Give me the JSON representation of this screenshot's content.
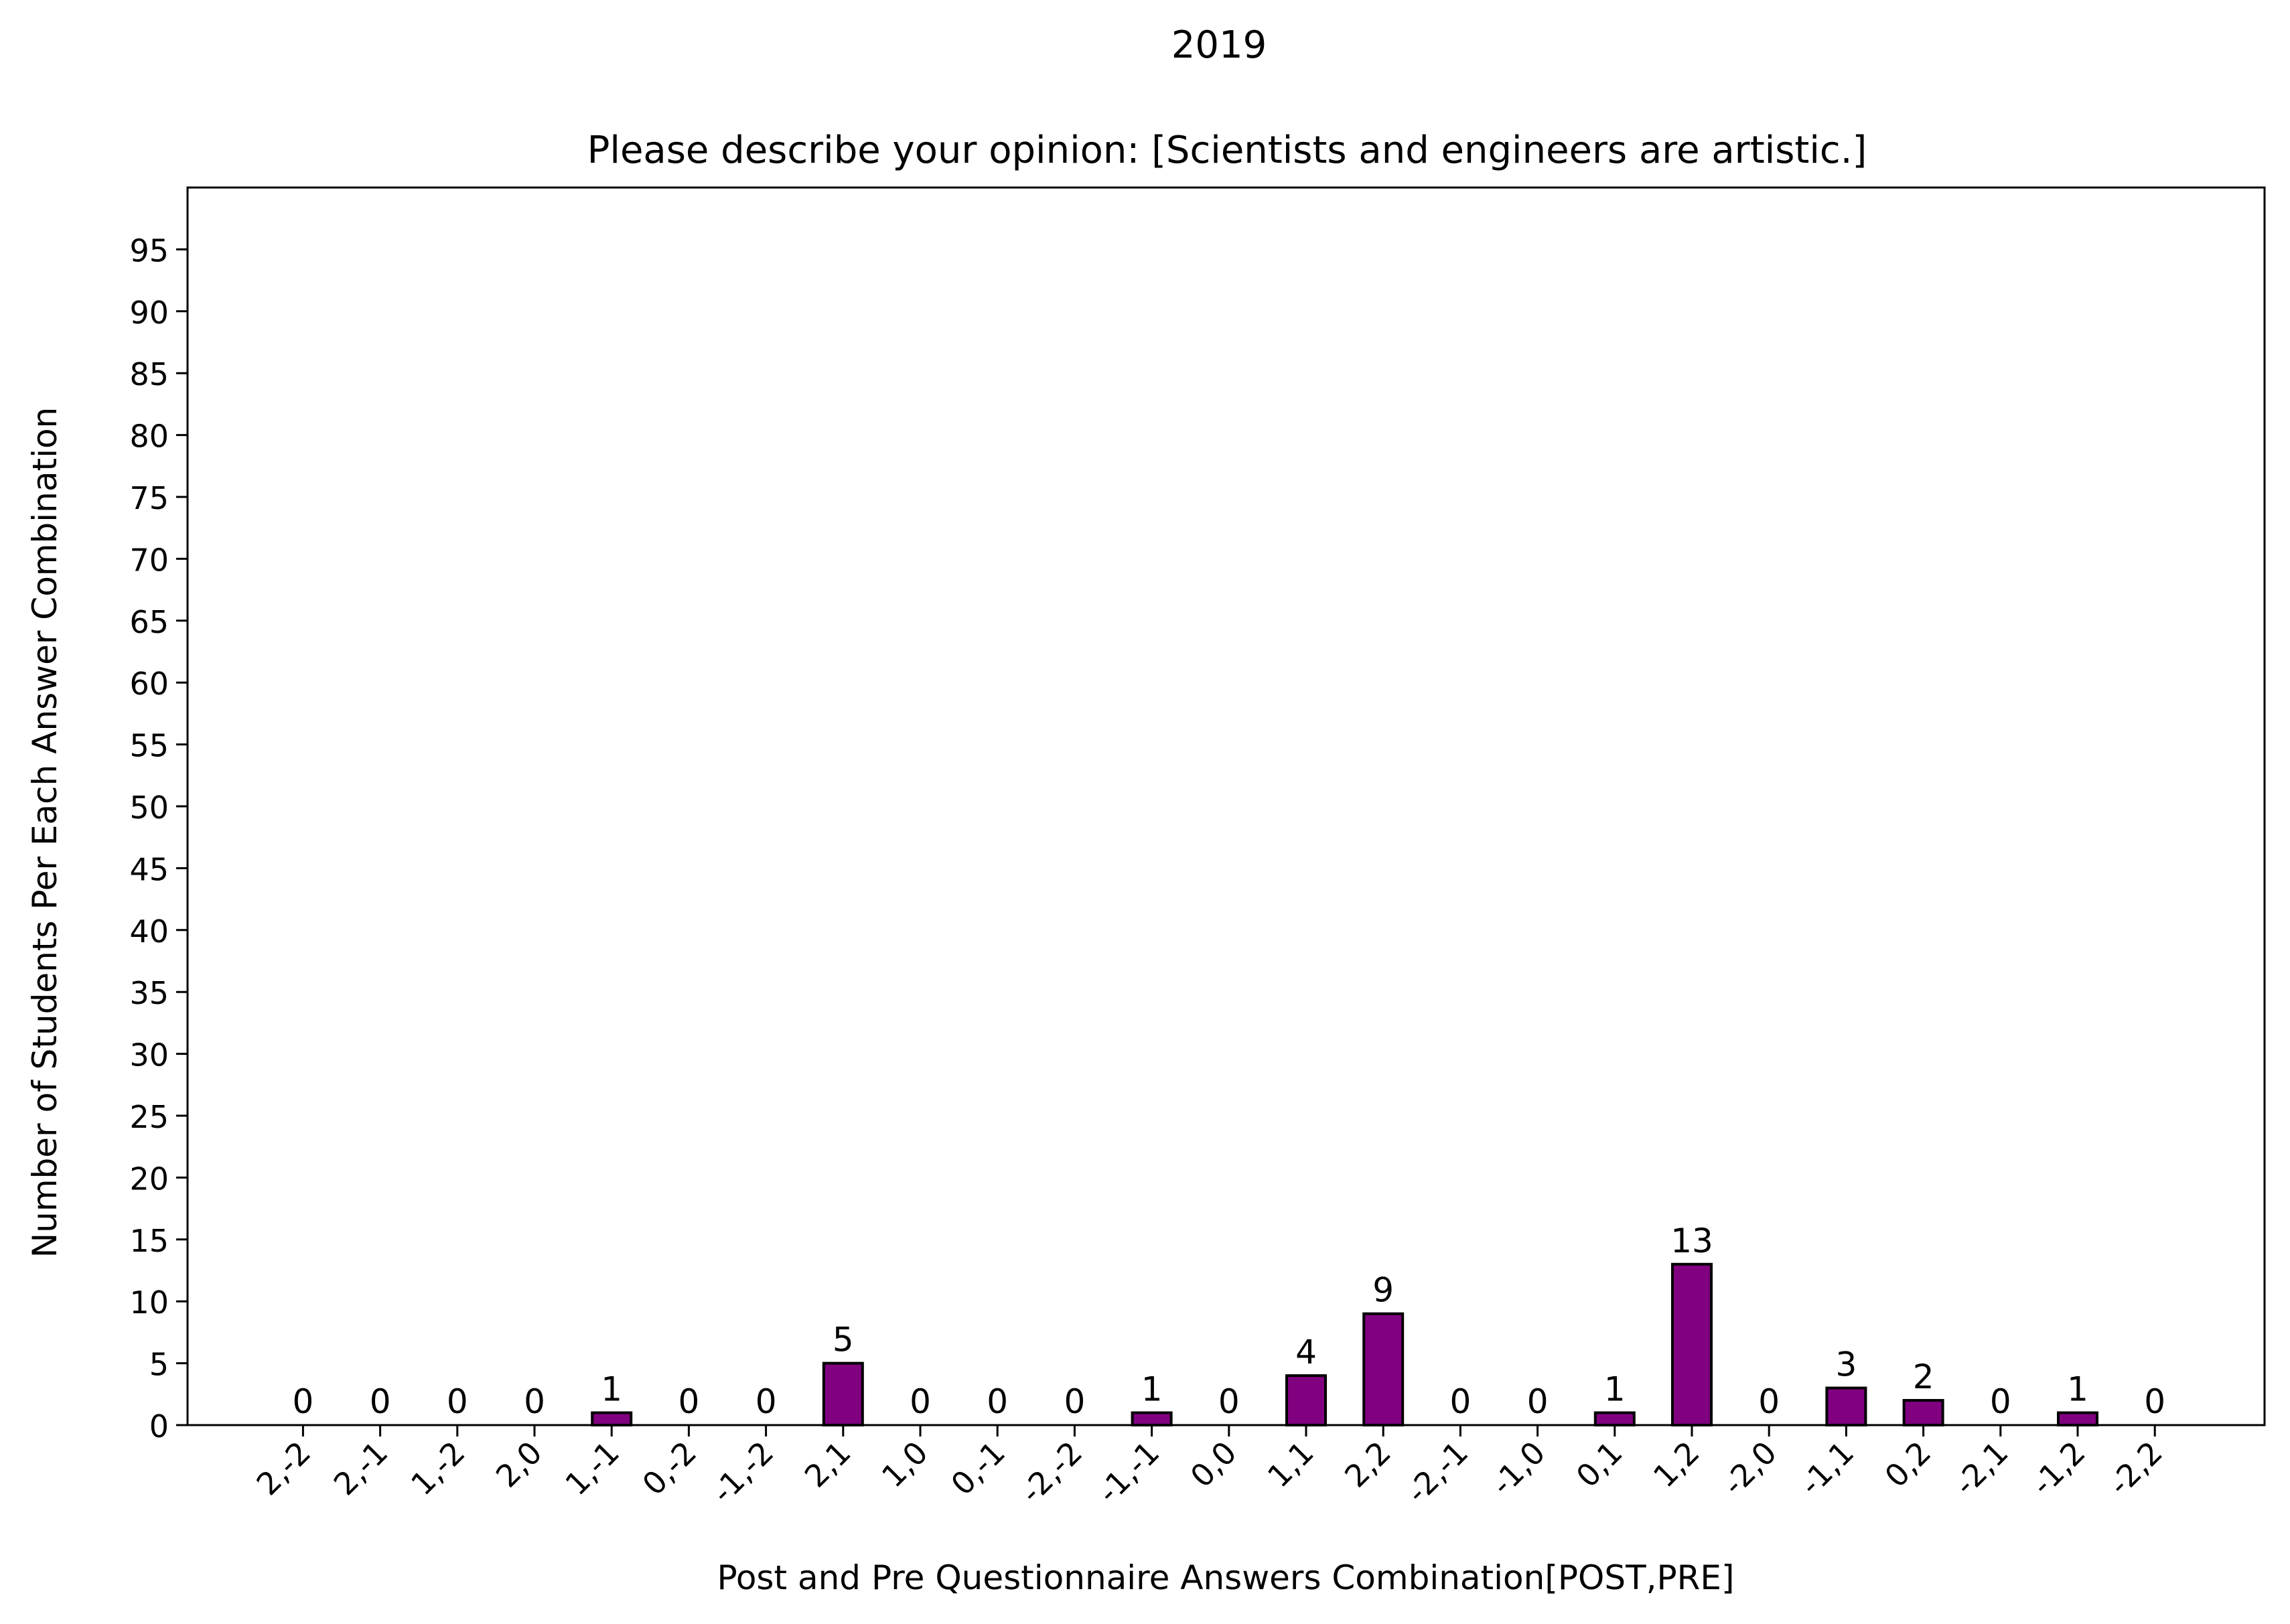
{
  "chart_data": {
    "type": "bar",
    "suptitle": "2019",
    "title": "Please describe your opinion: [Scientists and engineers are artistic.]",
    "xlabel": "Post and Pre Questionnaire Answers Combination[POST,PRE]",
    "ylabel": "Number of Students Per Each Answer Combination",
    "categories": [
      "2,-2",
      "2,-1",
      "1,-2",
      "2,0",
      "1,-1",
      "0,-2",
      "-1,-2",
      "2,1",
      "1,0",
      "0,-1",
      "-2,-2",
      "-1,-1",
      "0,0",
      "1,1",
      "2,2",
      "-2,-1",
      "-1,0",
      "0,1",
      "1,2",
      "-2,0",
      "-1,1",
      "0,2",
      "-2,1",
      "-1,2",
      "-2,2"
    ],
    "values": [
      0,
      0,
      0,
      0,
      1,
      0,
      0,
      5,
      0,
      0,
      0,
      1,
      0,
      4,
      9,
      0,
      0,
      1,
      13,
      0,
      3,
      2,
      0,
      1,
      0
    ],
    "data_labels": [
      "0",
      "0",
      "0",
      "0",
      "1",
      "0",
      "0",
      "5",
      "0",
      "0",
      "0",
      "1",
      "0",
      "4",
      "9",
      "0",
      "0",
      "1",
      "13",
      "0",
      "3",
      "2",
      "0",
      "1",
      "0"
    ],
    "ylim": [
      0,
      100
    ],
    "yticks": [
      0,
      5,
      10,
      15,
      20,
      25,
      30,
      35,
      40,
      45,
      50,
      55,
      60,
      65,
      70,
      75,
      80,
      85,
      90,
      95
    ],
    "bar_color": "#800080",
    "edge_color": "#000000",
    "grid": false,
    "legend": "none"
  }
}
